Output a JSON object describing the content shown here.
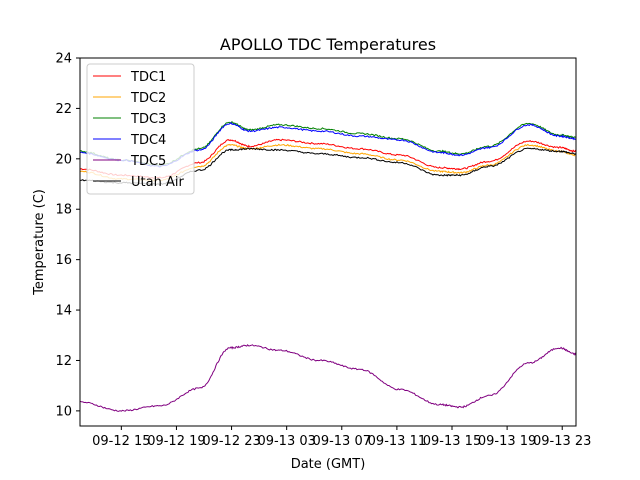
{
  "chart_data": {
    "type": "line",
    "title": "APOLLO TDC Temperatures",
    "xlabel": "Date (GMT)",
    "ylabel": "Temperature (C)",
    "x_unit": "hours since 09-12 00:00 GMT",
    "xlim": [
      12.0,
      48.0
    ],
    "ylim": [
      9.4,
      24
    ],
    "yticks": [
      10,
      12,
      14,
      16,
      18,
      20,
      22,
      24
    ],
    "xticks": [
      {
        "value": 15,
        "label": "09-12 15"
      },
      {
        "value": 19,
        "label": "09-12 19"
      },
      {
        "value": 23,
        "label": "09-12 23"
      },
      {
        "value": 27,
        "label": "09-13 03"
      },
      {
        "value": 31,
        "label": "09-13 07"
      },
      {
        "value": 35,
        "label": "09-13 11"
      },
      {
        "value": 39,
        "label": "09-13 15"
      },
      {
        "value": 43,
        "label": "09-13 19"
      },
      {
        "value": 47,
        "label": "09-13 23"
      }
    ],
    "grid": false,
    "legend_position": "upper-left",
    "x": [
      12.0,
      15.0,
      17.8,
      20.7,
      22.9,
      24.3,
      26.5,
      29.4,
      32.3,
      35.2,
      38.1,
      39.6,
      41.7,
      44.6,
      46.8,
      48.0
    ],
    "series": [
      {
        "name": "TDC1",
        "color": "#ff0000",
        "values": [
          19.6,
          19.35,
          19.25,
          19.85,
          20.75,
          20.5,
          20.75,
          20.6,
          20.4,
          20.15,
          19.65,
          19.6,
          19.9,
          20.7,
          20.45,
          20.3
        ]
      },
      {
        "name": "TDC2",
        "color": "#ffa500",
        "values": [
          19.5,
          19.2,
          19.15,
          19.7,
          20.55,
          20.4,
          20.55,
          20.4,
          20.2,
          19.95,
          19.5,
          19.45,
          19.75,
          20.55,
          20.3,
          20.15
        ]
      },
      {
        "name": "TDC3",
        "color": "#008000",
        "values": [
          20.3,
          19.95,
          19.75,
          20.4,
          21.45,
          21.15,
          21.35,
          21.2,
          21.0,
          20.8,
          20.3,
          20.2,
          20.5,
          21.4,
          20.95,
          20.85
        ]
      },
      {
        "name": "TDC4",
        "color": "#0000ff",
        "values": [
          20.25,
          19.95,
          19.7,
          20.35,
          21.4,
          21.1,
          21.25,
          21.1,
          20.9,
          20.75,
          20.25,
          20.15,
          20.45,
          21.35,
          20.9,
          20.8
        ]
      },
      {
        "name": "TDC5",
        "color": "#800080",
        "values": [
          10.35,
          10.0,
          10.2,
          10.9,
          12.5,
          12.6,
          12.4,
          12.0,
          11.65,
          10.85,
          10.25,
          10.15,
          10.6,
          11.9,
          12.5,
          12.25
        ]
      },
      {
        "name": "Utah Air",
        "color": "#000000",
        "values": [
          19.15,
          19.05,
          19.0,
          19.55,
          20.35,
          20.4,
          20.35,
          20.2,
          20.05,
          19.85,
          19.35,
          19.35,
          19.7,
          20.4,
          20.3,
          20.2
        ]
      }
    ]
  }
}
